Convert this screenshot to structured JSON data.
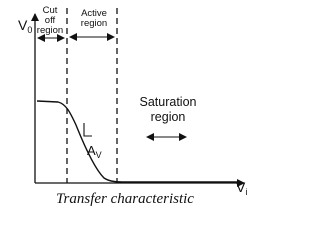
{
  "axes": {
    "y_label": {
      "symbol": "V",
      "subscript": "0"
    },
    "x_label": {
      "symbol": "V",
      "subscript": "i"
    }
  },
  "regions": [
    {
      "lines": [
        "Cut",
        "off",
        "region"
      ]
    },
    {
      "lines": [
        "Active",
        "region"
      ]
    },
    {
      "lines": [
        "Saturation",
        "region"
      ]
    }
  ],
  "slope_label": {
    "symbol": "A",
    "subscript": "V"
  },
  "caption": "Transfer characteristic"
}
